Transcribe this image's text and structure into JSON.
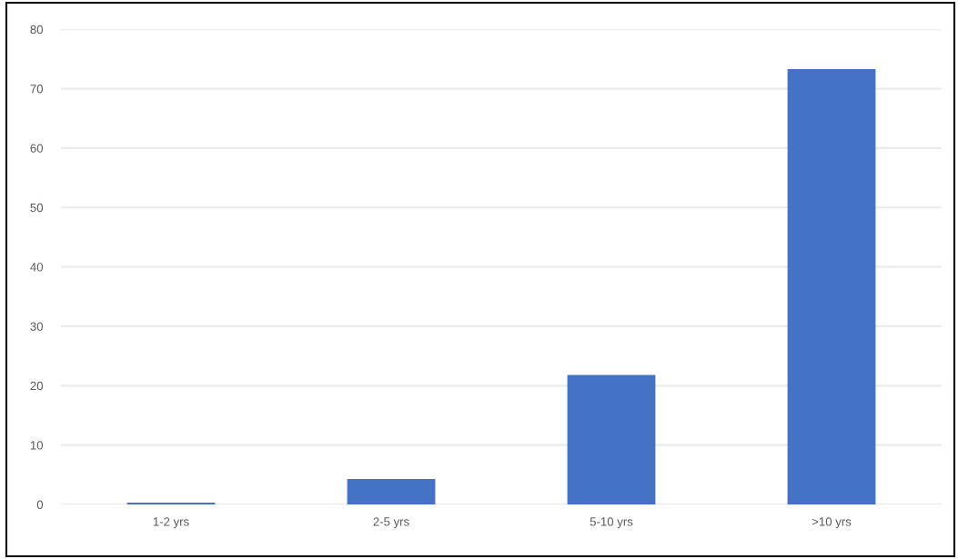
{
  "chart_data": {
    "type": "bar",
    "categories": [
      "1-2 yrs",
      "2-5 yrs",
      "5-10 yrs",
      ">10 yrs"
    ],
    "values": [
      0.3,
      4.3,
      21.8,
      73.3
    ],
    "color": "#4472c4",
    "ylim": [
      0,
      80
    ],
    "yticks": [
      0,
      10,
      20,
      30,
      40,
      50,
      60,
      70,
      80
    ],
    "grid": "y"
  }
}
